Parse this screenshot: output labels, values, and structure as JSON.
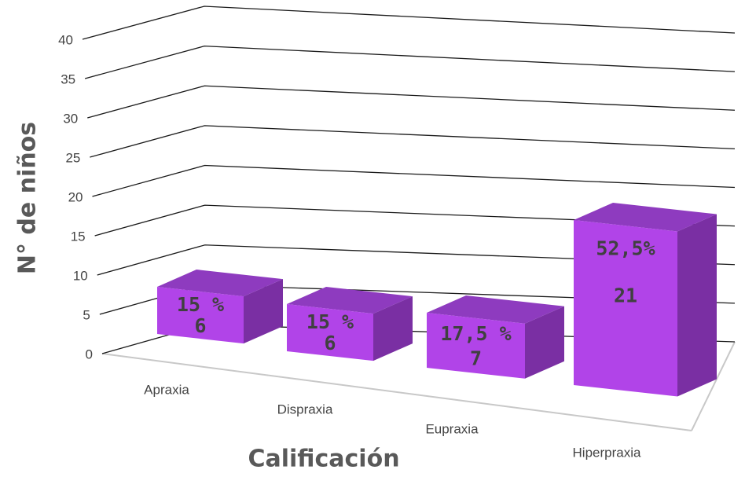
{
  "chart_data": {
    "type": "bar3d",
    "categories": [
      "Apraxia",
      "Dispraxia",
      "Eupraxia",
      "Hiperpraxia"
    ],
    "values": [
      6,
      6,
      7,
      21
    ],
    "percent_labels": [
      "15 %",
      "15 %",
      "17,5 %",
      "52,5%"
    ],
    "color": "#b144e8",
    "ylim": [
      0,
      40
    ],
    "yticks": [
      0,
      5,
      10,
      15,
      20,
      25,
      30,
      35,
      40
    ],
    "grid": true,
    "y_label": "N° de niños",
    "x_label": "Calificación"
  }
}
